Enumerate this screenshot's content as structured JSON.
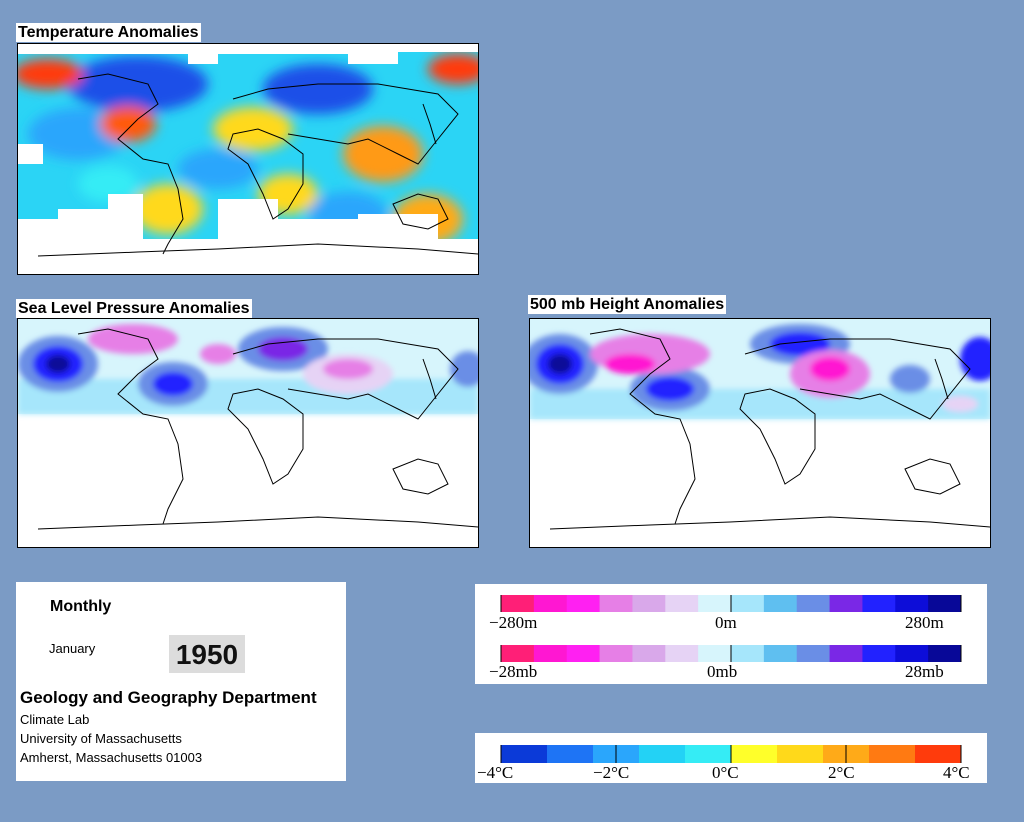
{
  "maps": {
    "temperature": {
      "title": "Temperature Anomalies"
    },
    "slp": {
      "title": "Sea Level Pressure Anomalies"
    },
    "height500": {
      "title": "500 mb Height Anomalies"
    }
  },
  "info": {
    "period": "Monthly",
    "month": "January",
    "year": "1950",
    "department": "Geology and Geography Department",
    "lab": "Climate Lab",
    "university": "University of Massachusetts",
    "address": "Amherst, Massachusetts 01003"
  },
  "legends": {
    "height": {
      "min": "−280m",
      "mid": "0m",
      "max": "280m"
    },
    "pressure": {
      "min": "−28mb",
      "mid": "0mb",
      "max": "28mb"
    },
    "temperature": {
      "t1": "−4°C",
      "t2": "−2°C",
      "t3": "0°C",
      "t4": "2°C",
      "t5": "4°C"
    }
  },
  "colors": {
    "background": "#7b9bc5",
    "height_pressure_scale": [
      "#ff1f77",
      "#ff17d2",
      "#ff20f2",
      "#e67fe6",
      "#d9a8ea",
      "#e6d3f5",
      "#d7f5fc",
      "#a6e6fb",
      "#5fbff0",
      "#6a8ee6",
      "#7a28e6",
      "#2222ff",
      "#0d0dd8",
      "#080898"
    ],
    "temperature_scale": [
      "#0b3ad8",
      "#1e74f5",
      "#2aa6fc",
      "#23d2f5",
      "#35ecf5",
      "#ffff2a",
      "#ffd91a",
      "#ffaa18",
      "#ff7a12",
      "#ff3b0c"
    ]
  }
}
